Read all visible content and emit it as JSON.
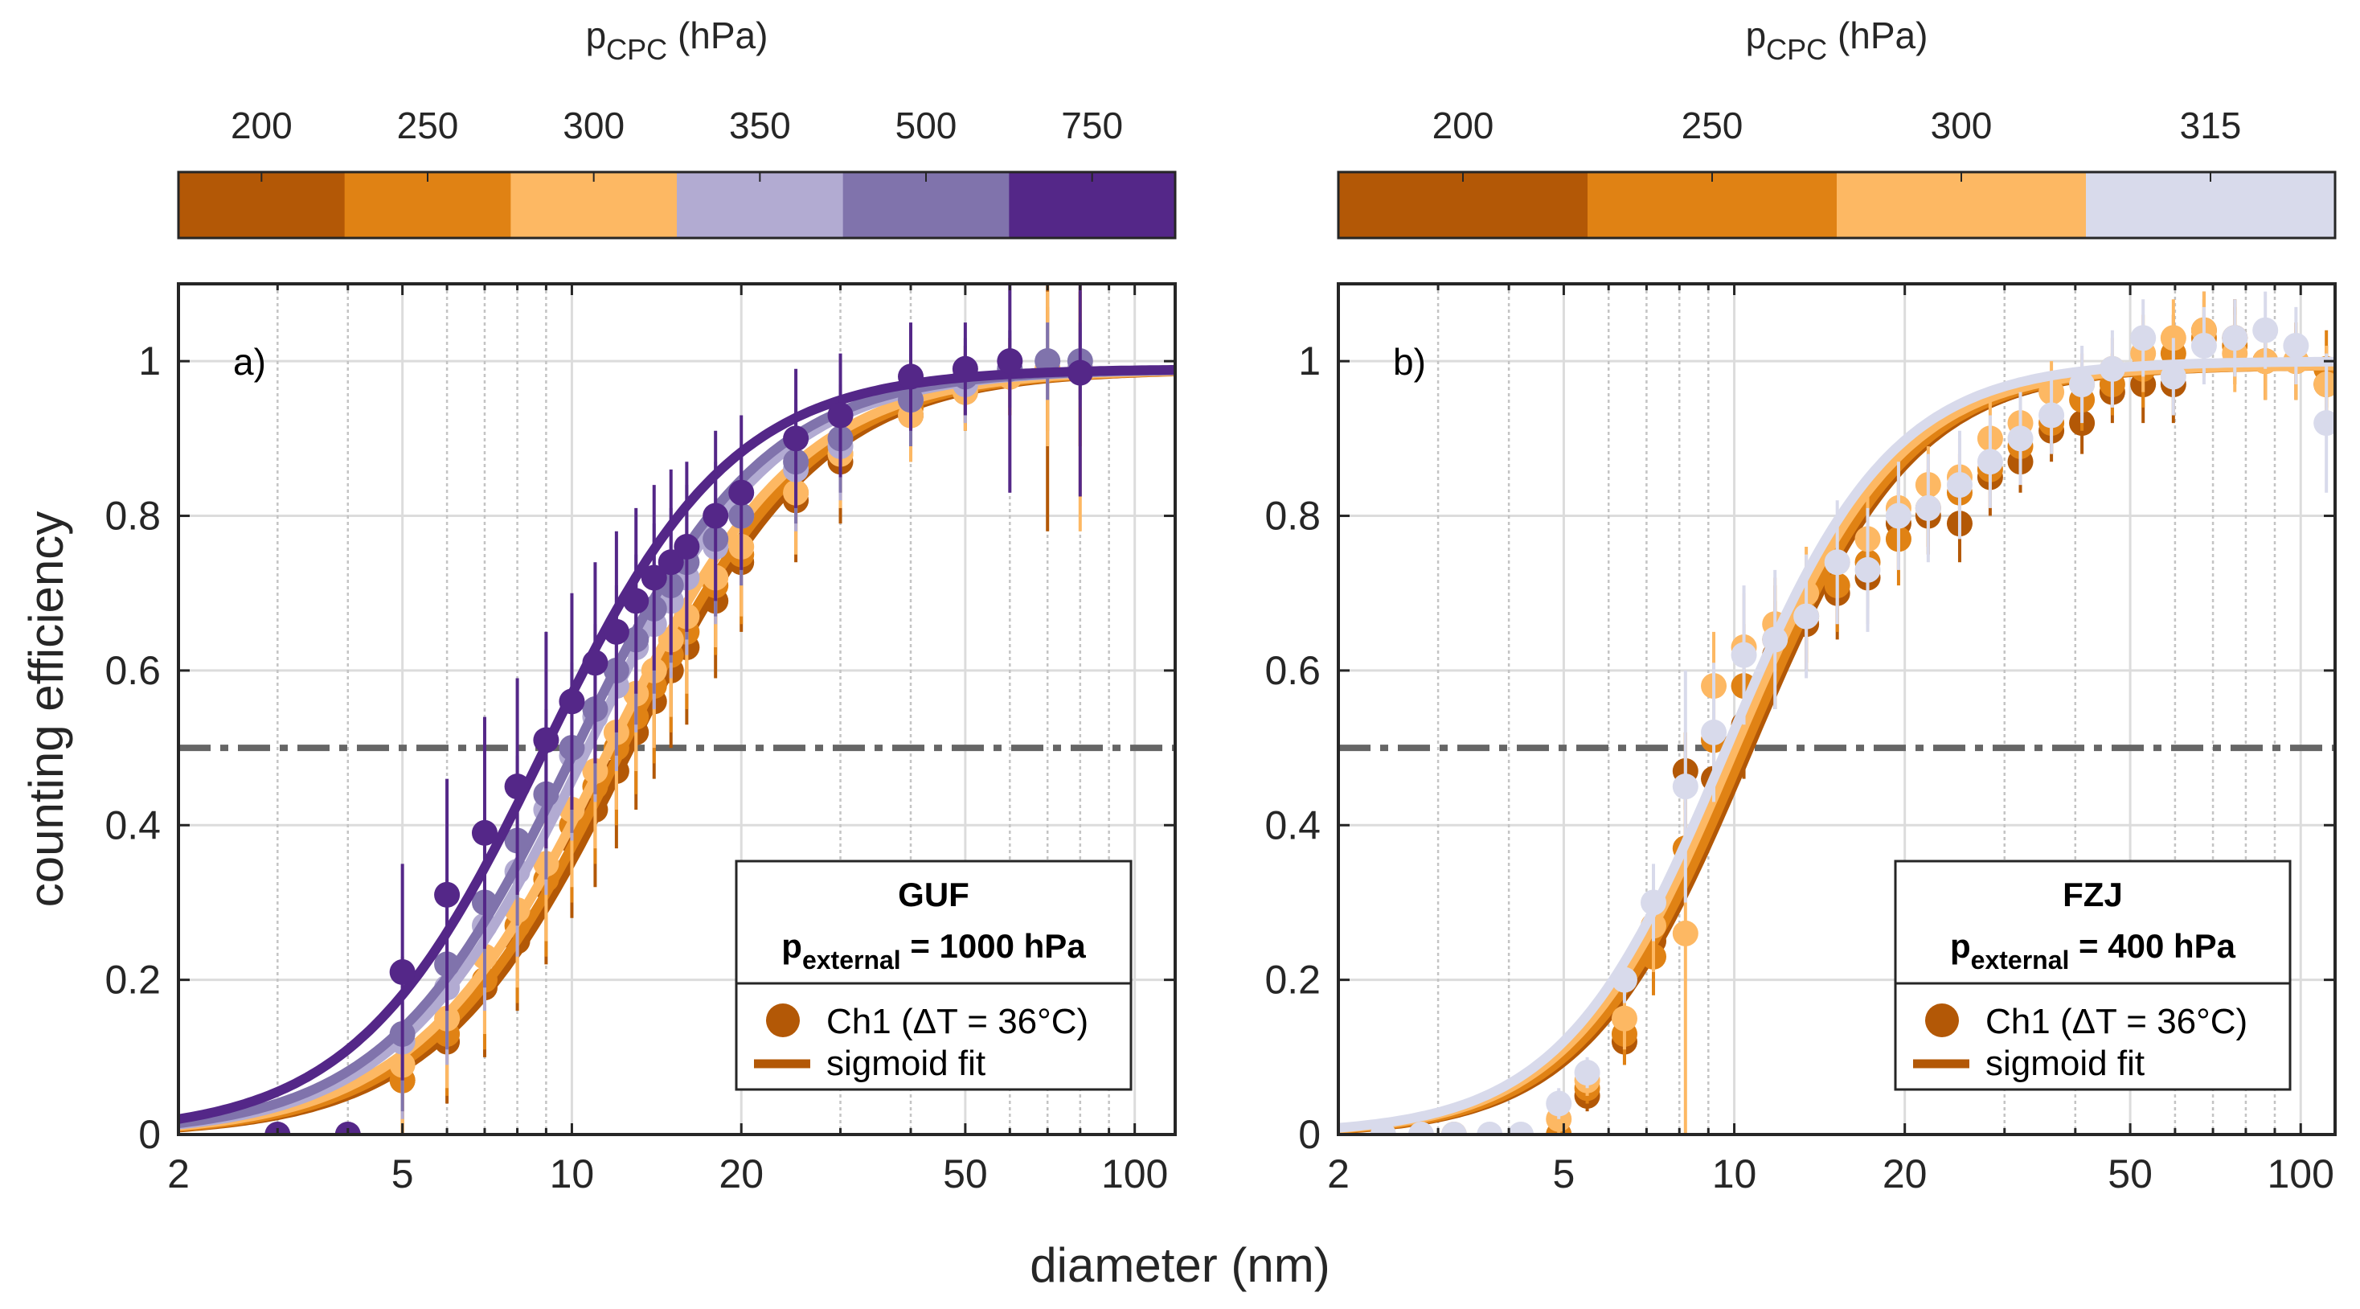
{
  "chart_data": [
    {
      "type": "scatter",
      "panel_label": "a)",
      "title": "",
      "xlabel": "diameter (nm)",
      "ylabel": "counting efficiency",
      "xscale": "log",
      "xlim": [
        2,
        118
      ],
      "ylim": [
        0,
        1.1
      ],
      "xticks": [
        2,
        5,
        10,
        20,
        50,
        100
      ],
      "xtick_labels": [
        "2",
        "5",
        "10",
        "20",
        "50",
        "100"
      ],
      "yticks": [
        0,
        0.2,
        0.4,
        0.6,
        0.8,
        1
      ],
      "ytick_labels": [
        "0",
        "0.2",
        "0.4",
        "0.6",
        "0.8",
        "1"
      ],
      "grid": true,
      "reference_line": {
        "y": 0.5,
        "style": "dash-dot",
        "color": "#666666"
      },
      "colorbar": {
        "title": "p",
        "title_sub": "CPC",
        "title_unit": " (hPa)",
        "labels": [
          "200",
          "250",
          "300",
          "350",
          "500",
          "750"
        ],
        "colors": [
          "#b35806",
          "#e08214",
          "#fdb863",
          "#b2abd2",
          "#8073ac",
          "#542788"
        ]
      },
      "legend": {
        "placement": "bottom-right",
        "title_line1": "GUF",
        "title_p": "p",
        "title_sub": "external",
        "title_rest": " = 1000 hPa",
        "items": [
          {
            "label": "Ch1 (ΔT = 36°C)",
            "marker": "circle",
            "color": "#b35806"
          },
          {
            "label": "sigmoid fit",
            "marker": "line",
            "color": "#b35806"
          }
        ]
      },
      "series": [
        {
          "name": "200 hPa",
          "color": "#b35806",
          "fit": {
            "d50": 12.6,
            "k": 2.55,
            "a": 0.99
          },
          "x": [
            5,
            6,
            7,
            8,
            9,
            10,
            11,
            12,
            13,
            14,
            15,
            16,
            18,
            20,
            25,
            30,
            40,
            50,
            60,
            70,
            80
          ],
          "y": [
            0.07,
            0.12,
            0.19,
            0.25,
            0.32,
            0.38,
            0.42,
            0.47,
            0.52,
            0.56,
            0.6,
            0.63,
            0.69,
            0.74,
            0.82,
            0.87,
            0.93,
            0.96,
            0.98,
            0.99,
            0.99
          ],
          "err": [
            0.06,
            0.08,
            0.09,
            0.09,
            0.1,
            0.1,
            0.1,
            0.1,
            0.1,
            0.1,
            0.1,
            0.1,
            0.1,
            0.09,
            0.08,
            0.08,
            0.06,
            0.05,
            0.05,
            0.21,
            0.1
          ]
        },
        {
          "name": "250 hPa",
          "color": "#e08214",
          "fit": {
            "d50": 12.2,
            "k": 2.55,
            "a": 0.99
          },
          "x": [
            5,
            6,
            7,
            8,
            9,
            10,
            11,
            12,
            13,
            14,
            15,
            16,
            18,
            20,
            25,
            30,
            40,
            50,
            60,
            70,
            80
          ],
          "y": [
            0.07,
            0.13,
            0.2,
            0.27,
            0.33,
            0.4,
            0.45,
            0.5,
            0.54,
            0.58,
            0.62,
            0.65,
            0.71,
            0.75,
            0.83,
            0.88,
            0.94,
            0.97,
            0.98,
            0.99,
            0.99
          ],
          "err": [
            0.07,
            0.08,
            0.09,
            0.1,
            0.1,
            0.1,
            0.1,
            0.1,
            0.1,
            0.1,
            0.1,
            0.1,
            0.09,
            0.09,
            0.08,
            0.07,
            0.06,
            0.05,
            0.05,
            0.08,
            0.1
          ]
        },
        {
          "name": "300 hPa",
          "color": "#fdb863",
          "fit": {
            "d50": 11.6,
            "k": 2.55,
            "a": 0.99
          },
          "x": [
            5,
            6,
            7,
            8,
            9,
            10,
            11,
            12,
            13,
            14,
            15,
            16,
            18,
            20,
            25,
            30,
            40,
            50,
            60,
            70,
            80
          ],
          "y": [
            0.09,
            0.15,
            0.23,
            0.29,
            0.35,
            0.42,
            0.47,
            0.52,
            0.57,
            0.6,
            0.64,
            0.67,
            0.72,
            0.76,
            0.83,
            0.88,
            0.93,
            0.96,
            0.98,
            0.99,
            0.99
          ],
          "err": [
            0.08,
            0.09,
            0.1,
            0.1,
            0.1,
            0.1,
            0.1,
            0.1,
            0.1,
            0.1,
            0.1,
            0.1,
            0.09,
            0.09,
            0.08,
            0.07,
            0.06,
            0.05,
            0.05,
            0.1,
            0.21
          ]
        },
        {
          "name": "350 hPa",
          "color": "#b2abd2",
          "fit": {
            "d50": 10.6,
            "k": 2.6,
            "a": 0.99
          },
          "x": [
            5,
            6,
            7,
            8,
            9,
            10,
            11,
            12,
            13,
            14,
            15,
            16,
            18,
            20,
            25,
            30,
            40,
            50,
            60,
            70,
            80
          ],
          "y": [
            0.12,
            0.19,
            0.27,
            0.34,
            0.42,
            0.49,
            0.54,
            0.58,
            0.63,
            0.66,
            0.69,
            0.72,
            0.76,
            0.8,
            0.86,
            0.89,
            0.95,
            0.97,
            0.99,
            1.0,
            0.99
          ],
          "err": [
            0.1,
            0.1,
            0.11,
            0.11,
            0.11,
            0.11,
            0.11,
            0.11,
            0.11,
            0.11,
            0.1,
            0.1,
            0.1,
            0.09,
            0.08,
            0.07,
            0.06,
            0.05,
            0.05,
            0.05,
            0.05
          ]
        },
        {
          "name": "500 hPa",
          "color": "#8073ac",
          "fit": {
            "d50": 10.1,
            "k": 2.6,
            "a": 0.99
          },
          "x": [
            5,
            6,
            7,
            8,
            9,
            10,
            11,
            12,
            13,
            14,
            15,
            16,
            18,
            20,
            25,
            30,
            40,
            50,
            60,
            70,
            80
          ],
          "y": [
            0.13,
            0.22,
            0.3,
            0.38,
            0.44,
            0.5,
            0.55,
            0.6,
            0.64,
            0.68,
            0.71,
            0.74,
            0.77,
            0.8,
            0.87,
            0.9,
            0.95,
            0.98,
            0.99,
            1.0,
            1.0
          ],
          "err": [
            0.1,
            0.11,
            0.11,
            0.11,
            0.11,
            0.11,
            0.11,
            0.11,
            0.11,
            0.11,
            0.1,
            0.1,
            0.1,
            0.09,
            0.08,
            0.07,
            0.06,
            0.05,
            0.05,
            0.05,
            0.05
          ]
        },
        {
          "name": "750 hPa",
          "color": "#542788",
          "fit": {
            "d50": 8.9,
            "k": 2.6,
            "a": 0.99
          },
          "x": [
            3,
            4,
            5,
            6,
            7,
            8,
            9,
            10,
            11,
            12,
            13,
            14,
            15,
            16,
            18,
            20,
            25,
            30,
            40,
            50,
            60,
            80
          ],
          "y": [
            0.0,
            0.0,
            0.21,
            0.31,
            0.39,
            0.45,
            0.51,
            0.56,
            0.61,
            0.65,
            0.69,
            0.72,
            0.74,
            0.76,
            0.8,
            0.83,
            0.9,
            0.93,
            0.98,
            0.99,
            1.0,
            0.985
          ],
          "err": [
            0,
            0,
            0.14,
            0.15,
            0.15,
            0.14,
            0.14,
            0.14,
            0.13,
            0.13,
            0.12,
            0.12,
            0.12,
            0.11,
            0.11,
            0.1,
            0.09,
            0.08,
            0.07,
            0.06,
            0.17,
            0.16
          ]
        }
      ]
    },
    {
      "type": "scatter",
      "panel_label": "b)",
      "title": "",
      "xlabel": "diameter (nm)",
      "ylabel": "",
      "xscale": "log",
      "xlim": [
        2,
        115
      ],
      "ylim": [
        0,
        1.1
      ],
      "xticks": [
        2,
        5,
        10,
        20,
        50,
        100
      ],
      "xtick_labels": [
        "2",
        "5",
        "10",
        "20",
        "50",
        "100"
      ],
      "yticks": [
        0,
        0.2,
        0.4,
        0.6,
        0.8,
        1
      ],
      "ytick_labels": [
        "0",
        "0.2",
        "0.4",
        "0.6",
        "0.8",
        "1"
      ],
      "grid": true,
      "reference_line": {
        "y": 0.5,
        "style": "dash-dot",
        "color": "#666666"
      },
      "colorbar": {
        "title": "p",
        "title_sub": "CPC",
        "title_unit": " (hPa)",
        "labels": [
          "200",
          "250",
          "300",
          "315"
        ],
        "colors": [
          "#b35806",
          "#e08214",
          "#fdb863",
          "#d8daeb"
        ]
      },
      "legend": {
        "placement": "bottom-right",
        "title_line1": "FZJ",
        "title_p": "p",
        "title_sub": "external",
        "title_rest": " = 400 hPa",
        "items": [
          {
            "label": "Ch1 (ΔT = 36°C)",
            "marker": "circle",
            "color": "#b35806"
          },
          {
            "label": "sigmoid fit",
            "marker": "line",
            "color": "#b35806"
          }
        ]
      },
      "series": [
        {
          "name": "200 hPa",
          "color": "#b35806",
          "fit": {
            "d50": 10.6,
            "k": 3.0,
            "a": 0.995
          },
          "x": [
            4.9,
            5.5,
            6.4,
            7.2,
            8.2,
            9.2,
            10.4,
            11.8,
            13.4,
            15.2,
            17.2,
            19.5,
            22.0,
            25.0,
            28.3,
            32.0,
            36.3,
            41.1,
            46.5,
            52.7,
            59.6,
            67.5,
            76.5,
            86.6,
            98.1,
            111
          ],
          "y": [
            0.0,
            0.05,
            0.12,
            0.25,
            0.47,
            0.46,
            0.53,
            0.62,
            0.66,
            0.7,
            0.72,
            0.79,
            0.8,
            0.79,
            0.85,
            0.87,
            0.91,
            0.92,
            0.96,
            0.97,
            0.97,
            1.04,
            1.03,
            1.0,
            1.0,
            0.97
          ],
          "err": [
            0.0,
            0.02,
            0.03,
            0.06,
            0.05,
            0.07,
            0.07,
            0.07,
            0.06,
            0.06,
            0.06,
            0.06,
            0.05,
            0.05,
            0.05,
            0.04,
            0.04,
            0.04,
            0.04,
            0.05,
            0.05,
            0.05,
            0.05,
            0.05,
            0.05,
            0.05
          ]
        },
        {
          "name": "250 hPa",
          "color": "#e08214",
          "fit": {
            "d50": 10.4,
            "k": 3.0,
            "a": 0.995
          },
          "x": [
            4.9,
            5.5,
            6.4,
            7.2,
            8.2,
            9.2,
            10.4,
            11.8,
            13.4,
            15.2,
            17.2,
            19.5,
            22.0,
            25.0,
            28.3,
            32.0,
            36.3,
            41.1,
            46.5,
            52.7,
            59.6,
            67.5,
            76.5,
            86.6,
            98.1,
            111
          ],
          "y": [
            0.0,
            0.06,
            0.13,
            0.23,
            0.37,
            0.51,
            0.58,
            0.64,
            0.67,
            0.71,
            0.74,
            0.77,
            0.81,
            0.83,
            0.86,
            0.89,
            0.92,
            0.95,
            0.97,
            0.99,
            1.01,
            1.03,
            1.02,
            1.0,
            1.0,
            0.99
          ],
          "err": [
            0.0,
            0.02,
            0.04,
            0.05,
            0.06,
            0.08,
            0.08,
            0.07,
            0.06,
            0.06,
            0.06,
            0.06,
            0.05,
            0.05,
            0.05,
            0.05,
            0.04,
            0.04,
            0.04,
            0.05,
            0.05,
            0.05,
            0.05,
            0.05,
            0.05,
            0.05
          ]
        },
        {
          "name": "300 hPa",
          "color": "#fdb863",
          "fit": {
            "d50": 10.0,
            "k": 3.0,
            "a": 0.995
          },
          "x": [
            3.2,
            4.9,
            5.5,
            6.4,
            7.2,
            8.2,
            9.2,
            10.4,
            11.8,
            13.4,
            15.2,
            17.2,
            19.5,
            22.0,
            25.0,
            28.3,
            32.0,
            36.3,
            41.1,
            46.5,
            52.7,
            59.6,
            67.5,
            76.5,
            86.6,
            98.1,
            111
          ],
          "y": [
            0.0,
            0.02,
            0.07,
            0.15,
            0.27,
            0.26,
            0.58,
            0.63,
            0.66,
            0.7,
            0.74,
            0.77,
            0.81,
            0.84,
            0.85,
            0.9,
            0.92,
            0.96,
            0.97,
            0.99,
            1.01,
            1.03,
            1.04,
            1.01,
            1.0,
            1.0,
            0.97
          ],
          "err": [
            0.0,
            0.02,
            0.02,
            0.04,
            0.06,
            0.26,
            0.07,
            0.07,
            0.06,
            0.06,
            0.06,
            0.06,
            0.05,
            0.05,
            0.05,
            0.05,
            0.05,
            0.04,
            0.04,
            0.04,
            0.05,
            0.05,
            0.05,
            0.05,
            0.05,
            0.05,
            0.05
          ]
        },
        {
          "name": "315 hPa",
          "color": "#d8daeb",
          "fit": {
            "d50": 9.7,
            "k": 3.0,
            "a": 1.0
          },
          "x": [
            2.4,
            2.8,
            3.2,
            3.7,
            4.2,
            4.9,
            5.5,
            6.4,
            7.2,
            8.2,
            9.2,
            10.4,
            11.8,
            13.4,
            15.2,
            17.2,
            19.5,
            22.0,
            25.0,
            28.3,
            32.0,
            36.3,
            41.1,
            46.5,
            52.7,
            59.6,
            67.5,
            76.5,
            86.6,
            98.1,
            111
          ],
          "y": [
            0.0,
            0.0,
            0.0,
            0.0,
            0.0,
            0.04,
            0.08,
            0.2,
            0.3,
            0.45,
            0.52,
            0.62,
            0.64,
            0.67,
            0.74,
            0.73,
            0.8,
            0.81,
            0.84,
            0.87,
            0.9,
            0.93,
            0.97,
            0.99,
            1.03,
            0.98,
            1.02,
            1.03,
            1.04,
            1.02,
            0.92
          ],
          "err": [
            0,
            0,
            0,
            0,
            0,
            0.02,
            0.02,
            0.03,
            0.05,
            0.15,
            0.09,
            0.09,
            0.09,
            0.08,
            0.08,
            0.08,
            0.07,
            0.07,
            0.07,
            0.06,
            0.06,
            0.05,
            0.05,
            0.05,
            0.05,
            0.05,
            0.05,
            0.05,
            0.05,
            0.05,
            0.09
          ]
        }
      ]
    }
  ],
  "shared": {
    "xlabel": "diameter (nm)",
    "ylabel": "counting efficiency"
  }
}
